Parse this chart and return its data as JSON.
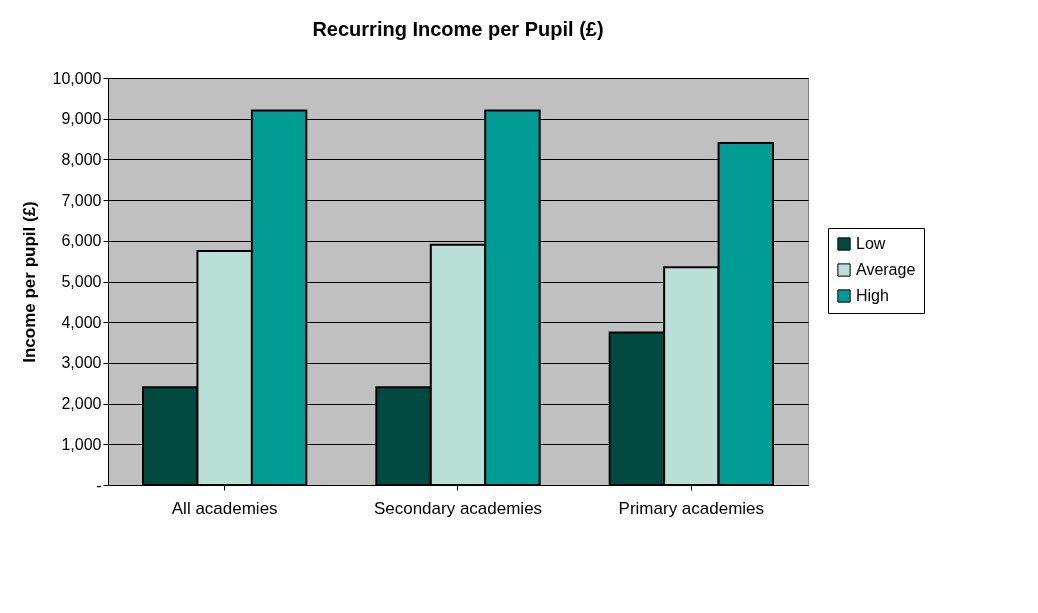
{
  "chart_data": {
    "type": "bar",
    "title": "Recurring Income per Pupil (£)",
    "ylabel": "Income per pupil (£)",
    "categories": [
      "All academies",
      "Secondary academies",
      "Primary academies"
    ],
    "series": [
      {
        "name": "Low",
        "color": "#004a40",
        "values": [
          2400,
          2400,
          3750
        ]
      },
      {
        "name": "Average",
        "color": "#b9dfd7",
        "values": [
          5750,
          5900,
          5350
        ]
      },
      {
        "name": "High",
        "color": "#019c94",
        "values": [
          9200,
          9200,
          8400
        ]
      }
    ],
    "ylim": [
      0,
      10000
    ],
    "yticks": [
      {
        "value": 0,
        "label": "-"
      },
      {
        "value": 1000,
        "label": "1,000"
      },
      {
        "value": 2000,
        "label": "2,000"
      },
      {
        "value": 3000,
        "label": "3,000"
      },
      {
        "value": 4000,
        "label": "4,000"
      },
      {
        "value": 5000,
        "label": "5,000"
      },
      {
        "value": 6000,
        "label": "6,000"
      },
      {
        "value": 7000,
        "label": "7,000"
      },
      {
        "value": 8000,
        "label": "8,000"
      },
      {
        "value": 9000,
        "label": "9,000"
      },
      {
        "value": 10000,
        "label": "10,000"
      }
    ],
    "grid": "y",
    "legend": "right"
  }
}
